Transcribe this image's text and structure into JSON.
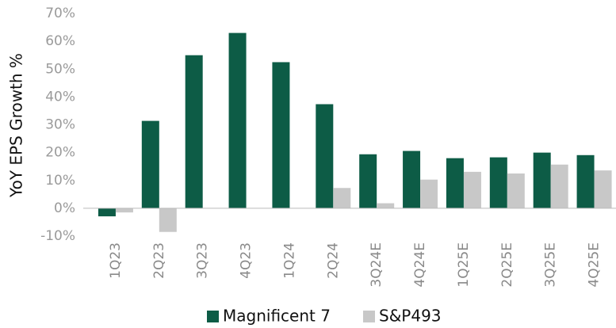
{
  "chart_data": {
    "type": "bar",
    "y_label": "YoY EPS Growth %",
    "categories": [
      "1Q23",
      "2Q23",
      "3Q23",
      "4Q23",
      "1Q24",
      "2Q24",
      "3Q24E",
      "4Q24E",
      "1Q25E",
      "2Q25E",
      "3Q25E",
      "4Q25E"
    ],
    "series": [
      {
        "name": "Magnificent 7",
        "color": "#0d5c46",
        "values": [
          -2.9,
          31.4,
          55,
          63,
          52.5,
          37.4,
          19.4,
          20.6,
          18,
          18.3,
          20,
          19.1
        ]
      },
      {
        "name": "S&P493",
        "color": "#c8c8c8",
        "values": [
          -1.5,
          -8.5,
          0,
          0,
          0,
          7.3,
          1.8,
          10.3,
          13.1,
          12.5,
          15.7,
          13.6
        ]
      }
    ],
    "ylim": [
      -10,
      70
    ],
    "yticks": [
      {
        "value": -10,
        "label": "-10%"
      },
      {
        "value": 0,
        "label": "0%"
      },
      {
        "value": 10,
        "label": "10%"
      },
      {
        "value": 20,
        "label": "20%"
      },
      {
        "value": 30,
        "label": "30%"
      },
      {
        "value": 40,
        "label": "40%"
      },
      {
        "value": 50,
        "label": "50%"
      },
      {
        "value": 60,
        "label": "60%"
      },
      {
        "value": 70,
        "label": "70%"
      }
    ]
  }
}
